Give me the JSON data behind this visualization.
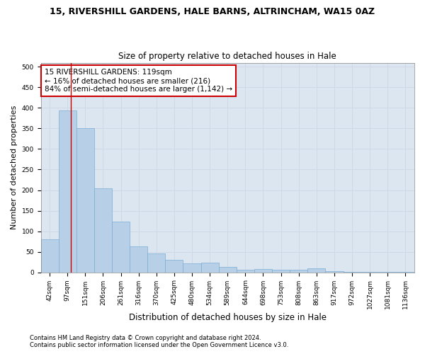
{
  "title1": "15, RIVERSHILL GARDENS, HALE BARNS, ALTRINCHAM, WA15 0AZ",
  "title2": "Size of property relative to detached houses in Hale",
  "xlabel": "Distribution of detached houses by size in Hale",
  "ylabel": "Number of detached properties",
  "footnote1": "Contains HM Land Registry data © Crown copyright and database right 2024.",
  "footnote2": "Contains public sector information licensed under the Open Government Licence v3.0.",
  "categories": [
    "42sqm",
    "97sqm",
    "151sqm",
    "206sqm",
    "261sqm",
    "316sqm",
    "370sqm",
    "425sqm",
    "480sqm",
    "534sqm",
    "589sqm",
    "644sqm",
    "698sqm",
    "753sqm",
    "808sqm",
    "863sqm",
    "917sqm",
    "972sqm",
    "1027sqm",
    "1081sqm",
    "1136sqm"
  ],
  "values": [
    80,
    393,
    350,
    205,
    123,
    63,
    45,
    30,
    22,
    24,
    13,
    6,
    8,
    6,
    6,
    10,
    2,
    1,
    1,
    1,
    1
  ],
  "bar_color": "#b8cfe8",
  "bar_edge_color": "#7aadd4",
  "annotation_text": "15 RIVERSHILL GARDENS: 119sqm\n← 16% of detached houses are smaller (216)\n84% of semi-detached houses are larger (1,142) →",
  "annotation_box_color": "#ffffff",
  "annotation_box_edge_color": "#cc0000",
  "red_line_x": 1.18,
  "ylim": [
    0,
    510
  ],
  "yticks": [
    0,
    50,
    100,
    150,
    200,
    250,
    300,
    350,
    400,
    450,
    500
  ],
  "grid_color": "#d0d8e8",
  "bg_color": "#dce6f0",
  "title1_fontsize": 9,
  "title2_fontsize": 8.5,
  "xlabel_fontsize": 8.5,
  "ylabel_fontsize": 8,
  "tick_fontsize": 6.5,
  "annotation_fontsize": 7.5,
  "footnote_fontsize": 6
}
